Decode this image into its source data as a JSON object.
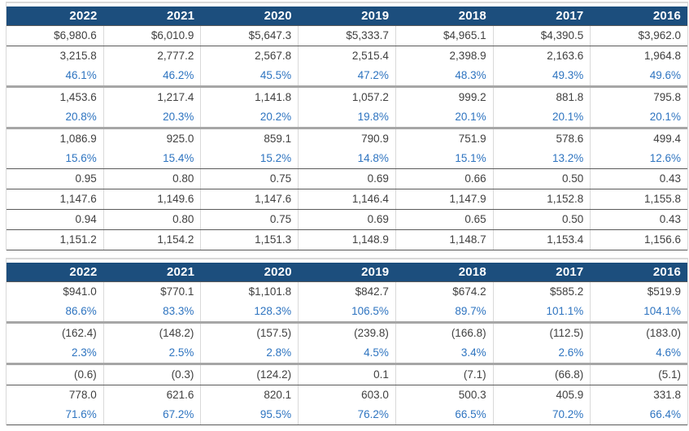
{
  "colors": {
    "header_bg": "#1c4e7d",
    "header_text": "#ffffff",
    "number_text": "#404040",
    "percent_text": "#2e74c0",
    "thin_line": "#5a5a5a",
    "thick_line": "#a6a6a6",
    "column_line": "#d9d9d9",
    "outer_line": "#d9d9d9"
  },
  "years": [
    "2022",
    "2021",
    "2020",
    "2019",
    "2018",
    "2017",
    "2016"
  ],
  "tables": [
    {
      "rows": [
        {
          "kind": "currency",
          "sep": "thin",
          "values": [
            "$6,980.6",
            "$6,010.9",
            "$5,647.3",
            "$5,333.7",
            "$4,965.1",
            "$4,390.5",
            "$3,962.0"
          ]
        },
        {
          "kind": "number",
          "sep": "none",
          "values": [
            "3,215.8",
            "2,777.2",
            "2,567.8",
            "2,515.4",
            "2,398.9",
            "2,163.6",
            "1,964.8"
          ]
        },
        {
          "kind": "percent",
          "sep": "thick",
          "values": [
            "46.1%",
            "46.2%",
            "45.5%",
            "47.2%",
            "48.3%",
            "49.3%",
            "49.6%"
          ]
        },
        {
          "kind": "number",
          "sep": "none",
          "values": [
            "1,453.6",
            "1,217.4",
            "1,141.8",
            "1,057.2",
            "999.2",
            "881.8",
            "795.8"
          ]
        },
        {
          "kind": "percent",
          "sep": "thick",
          "values": [
            "20.8%",
            "20.3%",
            "20.2%",
            "19.8%",
            "20.1%",
            "20.1%",
            "20.1%"
          ]
        },
        {
          "kind": "number",
          "sep": "none",
          "values": [
            "1,086.9",
            "925.0",
            "859.1",
            "790.9",
            "751.9",
            "578.6",
            "499.4"
          ]
        },
        {
          "kind": "percent",
          "sep": "thin",
          "values": [
            "15.6%",
            "15.4%",
            "15.2%",
            "14.8%",
            "15.1%",
            "13.2%",
            "12.6%"
          ]
        },
        {
          "kind": "number",
          "sep": "thin",
          "values": [
            "0.95",
            "0.80",
            "0.75",
            "0.69",
            "0.66",
            "0.50",
            "0.43"
          ]
        },
        {
          "kind": "number",
          "sep": "thin",
          "values": [
            "1,147.6",
            "1,149.6",
            "1,147.6",
            "1,146.4",
            "1,147.9",
            "1,152.8",
            "1,155.8"
          ]
        },
        {
          "kind": "number",
          "sep": "thin",
          "values": [
            "0.94",
            "0.80",
            "0.75",
            "0.69",
            "0.65",
            "0.50",
            "0.43"
          ]
        },
        {
          "kind": "number",
          "sep": "thin",
          "values": [
            "1,151.2",
            "1,154.2",
            "1,151.3",
            "1,148.9",
            "1,148.7",
            "1,153.4",
            "1,156.6"
          ]
        }
      ]
    },
    {
      "rows": [
        {
          "kind": "currency",
          "sep": "none",
          "values": [
            "$941.0",
            "$770.1",
            "$1,101.8",
            "$842.7",
            "$674.2",
            "$585.2",
            "$519.9"
          ]
        },
        {
          "kind": "percent",
          "sep": "thick",
          "values": [
            "86.6%",
            "83.3%",
            "128.3%",
            "106.5%",
            "89.7%",
            "101.1%",
            "104.1%"
          ]
        },
        {
          "kind": "number",
          "sep": "none",
          "values": [
            "(162.4)",
            "(148.2)",
            "(157.5)",
            "(239.8)",
            "(166.8)",
            "(112.5)",
            "(183.0)"
          ]
        },
        {
          "kind": "percent",
          "sep": "thick",
          "values": [
            "2.3%",
            "2.5%",
            "2.8%",
            "4.5%",
            "3.4%",
            "2.6%",
            "4.6%"
          ]
        },
        {
          "kind": "number",
          "sep": "thin",
          "values": [
            "(0.6)",
            "(0.3)",
            "(124.2)",
            "0.1",
            "(7.1)",
            "(66.8)",
            "(5.1)"
          ]
        },
        {
          "kind": "number",
          "sep": "none",
          "values": [
            "778.0",
            "621.6",
            "820.1",
            "603.0",
            "500.3",
            "405.9",
            "331.8"
          ]
        },
        {
          "kind": "percent",
          "sep": "thin",
          "values": [
            "71.6%",
            "67.2%",
            "95.5%",
            "76.2%",
            "66.5%",
            "70.2%",
            "66.4%"
          ]
        }
      ]
    }
  ]
}
